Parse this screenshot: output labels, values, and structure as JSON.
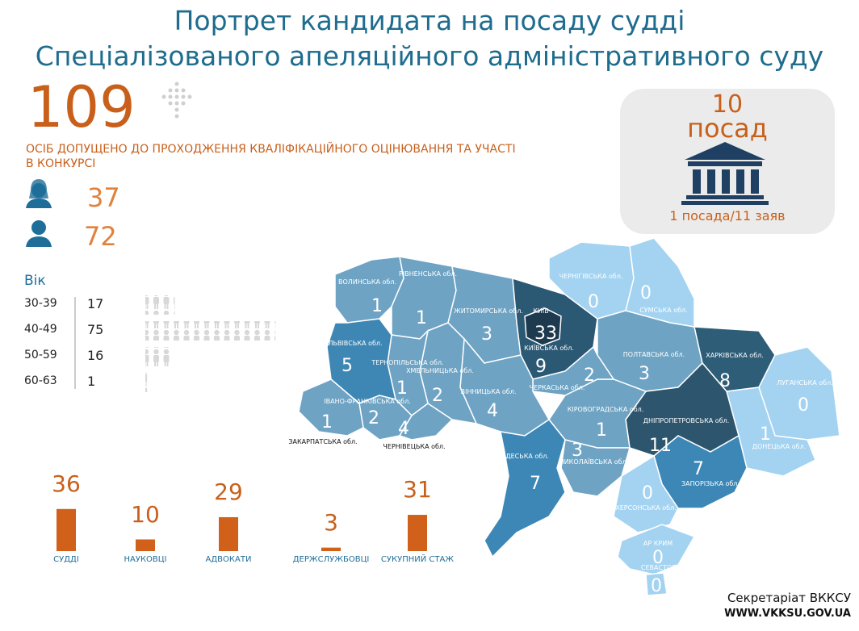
{
  "header": {
    "title_lines": [
      "Портрет кандидата на посаду судді",
      "Спеціалізованого апеляційного адміністративного суду"
    ]
  },
  "admitted": {
    "count": 109,
    "label": "ОСІБ ДОПУЩЕНО ДО ПРОХОДЖЕННЯ КВАЛІФІКАЦІЙНОГО ОЦІНЮВАННЯ ТА УЧАСТІ В КОНКУРСІ",
    "women": 37,
    "men": 72
  },
  "positions": {
    "count": 10,
    "unit": "посад",
    "ratio": "1 посада/11 заяв"
  },
  "age": {
    "title": "Вік",
    "color": "#dcdcdc",
    "rows": [
      {
        "range": "30-39",
        "count": 17
      },
      {
        "range": "40-49",
        "count": 75
      },
      {
        "range": "50-59",
        "count": 16
      },
      {
        "range": "60-63",
        "count": 1
      }
    ]
  },
  "experience": {
    "color": "#d0601a",
    "items": [
      {
        "label": "СУДДІ",
        "value": 36
      },
      {
        "label": "НАУКОВЦІ",
        "value": 10
      },
      {
        "label": "АДВОКАТИ",
        "value": 29
      },
      {
        "label": "ДЕРЖСЛУЖБОВЦІ",
        "value": 3
      },
      {
        "label": "СУКУПНИЙ СТАЖ",
        "value": 31
      }
    ]
  },
  "regions": [
    {
      "name": "ВОЛИНСЬКА обл.",
      "value": 1,
      "color": "#6ea3c4"
    },
    {
      "name": "РІВНЕНСЬКА обл.",
      "value": 1,
      "color": "#6ea3c4"
    },
    {
      "name": "ЖИТОМИРСЬКА обл.",
      "value": 3,
      "color": "#6ea3c4"
    },
    {
      "name": "КИЇВСЬКА обл.",
      "value": 9,
      "color": "#2b5873"
    },
    {
      "name": "КИЇВ",
      "value": 33,
      "color": "#1d3a4e"
    },
    {
      "name": "ЧЕРНІГІВСЬКА обл.",
      "value": 0,
      "color": "#a3d3f1"
    },
    {
      "name": "СУМСЬКА обл.",
      "value": 0,
      "color": "#a3d3f1"
    },
    {
      "name": "ПОЛТАВСЬКА обл.",
      "value": 3,
      "color": "#6ea3c4"
    },
    {
      "name": "ХАРКІВСЬКА обл.",
      "value": 8,
      "color": "#2e5d78"
    },
    {
      "name": "ЛУГАНСЬКА обл.",
      "value": 0,
      "color": "#a3d3f1"
    },
    {
      "name": "ДОНЕЦЬКА обл.",
      "value": 1,
      "color": "#a3d3f1"
    },
    {
      "name": "ДНІПРОПЕТРОВСЬКА обл.",
      "value": 11,
      "color": "#2d566e"
    },
    {
      "name": "ЗАПОРІЗЬКА обл.",
      "value": 7,
      "color": "#3c87b6"
    },
    {
      "name": "ХЕРСОНСЬКА обл.",
      "value": 0,
      "color": "#a3d3f1"
    },
    {
      "name": "АР КРИМ",
      "value": 0,
      "color": "#a3d3f1"
    },
    {
      "name": "СЕВАСТОПОЛЬ",
      "value": 0,
      "color": "#a3d3f1"
    },
    {
      "name": "КІРОВОГРАДСЬКА обл.",
      "value": 1,
      "color": "#6ea3c4"
    },
    {
      "name": "ЧЕРКАСЬКА обл.",
      "value": 2,
      "color": "#6ea3c4"
    },
    {
      "name": "ВІННИЦЬКА обл.",
      "value": 4,
      "color": "#6ea3c4"
    },
    {
      "name": "ХМЕЛЬНИЦЬКА обл.",
      "value": 2,
      "color": "#6ea3c4"
    },
    {
      "name": "ТЕРНОПІЛЬСЬКА обл.",
      "value": 1,
      "color": "#6ea3c4"
    },
    {
      "name": "ЛЬВІВСЬКА обл.",
      "value": 5,
      "color": "#3e87b5"
    },
    {
      "name": "ІВАНО-ФРАНКІВСЬКА обл.",
      "value": 2,
      "color": "#6ea3c4"
    },
    {
      "name": "ЗАКАРПАТСЬКА обл.",
      "value": 1,
      "color": "#6ea3c4"
    },
    {
      "name": "ЧЕРНІВЕЦЬКА обл.",
      "value": 4,
      "color": "#6ea3c4"
    },
    {
      "name": "ОДЕСЬКА обл.",
      "value": 7,
      "color": "#3c87b6"
    },
    {
      "name": "МИКОЛАЇВСЬКА обл.",
      "value": 3,
      "color": "#6ea3c4"
    }
  ],
  "footer": {
    "org": "Секретаріат ВККСУ",
    "url": "WWW.VKKSU.GOV.UA"
  }
}
